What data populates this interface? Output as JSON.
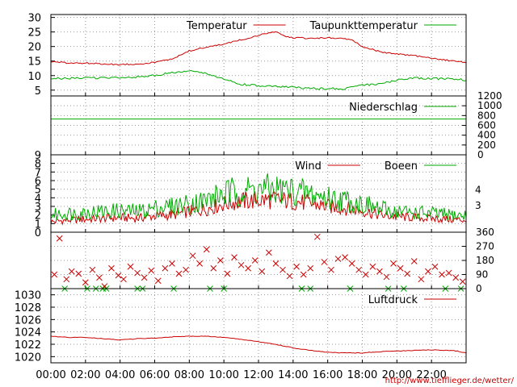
{
  "chart_data": [
    {
      "type": "line",
      "panel": "temperature",
      "ylim": [
        3,
        31
      ],
      "yticks": [
        5,
        10,
        15,
        20,
        25,
        30
      ],
      "grid": true,
      "legend_placement": "top-right",
      "series": [
        {
          "name": "Temperatur",
          "color": "#cc0000",
          "x": [
            0,
            1,
            2,
            3,
            4,
            5,
            6,
            7,
            7.5,
            8,
            9,
            10,
            11,
            12,
            12.5,
            13,
            13.5,
            14,
            15,
            16,
            17,
            17.5,
            18,
            19,
            20,
            21,
            22,
            23,
            24
          ],
          "y": [
            14.8,
            14.3,
            14.3,
            14.0,
            13.8,
            14.0,
            14.5,
            15.8,
            17.0,
            18.5,
            19.8,
            20.8,
            22.3,
            23.8,
            24.5,
            25.2,
            23.5,
            23.0,
            22.8,
            23.0,
            22.6,
            22.0,
            20.0,
            18.2,
            17.4,
            16.8,
            16.0,
            15.2,
            14.5
          ]
        },
        {
          "name": "Taupunkttemperatur",
          "color": "#00aa00",
          "x": [
            0,
            1,
            2,
            3,
            4,
            5,
            6,
            7,
            8,
            9,
            9.5,
            10,
            11,
            12,
            13,
            14,
            15,
            16,
            17,
            18,
            19,
            20,
            21,
            22,
            23,
            24
          ],
          "y": [
            9.0,
            9.0,
            9.2,
            9.2,
            9.4,
            9.5,
            10.0,
            11.0,
            11.5,
            10.8,
            9.5,
            8.8,
            7.0,
            6.5,
            6.2,
            6.0,
            5.5,
            5.5,
            5.5,
            6.8,
            7.0,
            8.5,
            9.2,
            9.0,
            8.8,
            8.5
          ]
        }
      ]
    },
    {
      "type": "line",
      "panel": "precipitation",
      "ylim": [
        0,
        1200
      ],
      "yticks": [
        0,
        200,
        400,
        600,
        800,
        1000,
        1200
      ],
      "legend_placement": "top-right",
      "series": [
        {
          "name": "Niederschlag",
          "color": "#00aa00",
          "x": [
            0,
            24
          ],
          "y": [
            0,
            0
          ]
        }
      ],
      "reference_line": {
        "y": 730,
        "color": "#00aa00"
      }
    },
    {
      "type": "line",
      "panel": "wind",
      "ylim": [
        0,
        9
      ],
      "yticks": [
        0,
        1,
        2,
        3,
        4,
        5,
        6,
        7,
        8,
        9
      ],
      "right_ticks": [
        {
          "label": "3",
          "value": 3.1
        },
        {
          "label": "4",
          "value": 4.9
        }
      ],
      "legend_placement": "top-right",
      "series": [
        {
          "name": "Wind",
          "color": "#cc0000",
          "x": [
            0,
            1,
            2,
            3,
            4,
            5,
            6,
            7,
            8,
            9,
            10,
            11,
            12,
            13,
            14,
            15,
            16,
            17,
            18,
            19,
            20,
            21,
            22,
            23,
            24
          ],
          "y": [
            1.2,
            1.4,
            1.5,
            1.6,
            1.7,
            1.6,
            1.9,
            2.0,
            2.4,
            2.7,
            3.3,
            3.6,
            3.7,
            3.8,
            3.6,
            3.3,
            3.0,
            2.8,
            2.5,
            2.0,
            1.8,
            1.7,
            1.6,
            1.5,
            1.4
          ]
        },
        {
          "name": "Boeen",
          "color": "#00aa00",
          "x": [
            0,
            1,
            2,
            3,
            4,
            5,
            6,
            7,
            8,
            9,
            10,
            11,
            12,
            13,
            14,
            15,
            16,
            17,
            18,
            19,
            20,
            21,
            22,
            23,
            24
          ],
          "y": [
            2.0,
            2.2,
            2.3,
            2.4,
            2.5,
            2.4,
            2.8,
            3.0,
            3.3,
            3.7,
            4.5,
            4.8,
            4.9,
            5.0,
            4.8,
            4.4,
            4.0,
            3.7,
            3.3,
            2.7,
            2.4,
            2.3,
            2.2,
            2.0,
            1.9
          ]
        }
      ]
    },
    {
      "type": "scatter",
      "panel": "wind-direction",
      "ylim": [
        0,
        360
      ],
      "right_ticks": [
        0,
        90,
        180,
        270,
        360
      ],
      "marker": "x",
      "grid": true,
      "series": [
        {
          "color": "#00aa00",
          "x": [
            0.8,
            2.1,
            2.6,
            3.0,
            3.2,
            5.0,
            5.3,
            7.1,
            9.2,
            10.0,
            14.5,
            15.0,
            17.3,
            19.5,
            20.4,
            22.8,
            23.7
          ],
          "y": [
            0,
            0,
            0,
            0,
            0,
            0,
            0,
            0,
            0,
            0,
            0,
            0,
            0,
            0,
            0,
            0,
            0
          ]
        },
        {
          "color": "#cc0000",
          "x": [
            0.2,
            0.5,
            0.9,
            1.2,
            1.6,
            2.0,
            2.4,
            2.8,
            3.1,
            3.5,
            3.9,
            4.2,
            4.6,
            5.0,
            5.4,
            5.8,
            6.2,
            6.6,
            7.0,
            7.4,
            7.8,
            8.2,
            8.6,
            9.0,
            9.4,
            9.8,
            10.2,
            10.6,
            11.0,
            11.4,
            11.8,
            12.2,
            12.6,
            13.0,
            13.4,
            13.8,
            14.2,
            14.6,
            15.0,
            15.4,
            15.8,
            16.2,
            16.6,
            17.0,
            17.4,
            17.8,
            18.2,
            18.6,
            19.0,
            19.4,
            19.8,
            20.2,
            20.6,
            21.0,
            21.4,
            21.8,
            22.2,
            22.6,
            23.0,
            23.4,
            23.8
          ],
          "y": [
            90,
            320,
            60,
            110,
            95,
            40,
            120,
            70,
            15,
            130,
            85,
            60,
            140,
            100,
            70,
            115,
            50,
            130,
            160,
            95,
            120,
            210,
            160,
            250,
            130,
            180,
            95,
            200,
            150,
            130,
            180,
            110,
            230,
            160,
            120,
            80,
            140,
            90,
            130,
            330,
            170,
            120,
            190,
            200,
            160,
            120,
            90,
            140,
            110,
            75,
            160,
            130,
            95,
            175,
            60,
            110,
            140,
            90,
            100,
            70,
            45
          ]
        }
      ]
    },
    {
      "type": "line",
      "panel": "pressure",
      "ylim": [
        1019,
        1031
      ],
      "yticks": [
        1020,
        1022,
        1024,
        1026,
        1028,
        1030
      ],
      "xlabels": [
        "00:00",
        "02:00",
        "04:00",
        "06:00",
        "08:00",
        "10:00",
        "12:00",
        "14:00",
        "16:00",
        "18:00",
        "20:00",
        "22:00"
      ],
      "legend_placement": "top-right",
      "series": [
        {
          "name": "Luftdruck",
          "color": "#cc0000",
          "x": [
            0,
            1,
            2,
            3,
            4,
            5,
            6,
            7,
            8,
            9,
            10,
            11,
            12,
            13,
            14,
            15,
            16,
            17,
            18,
            19,
            20,
            21,
            22,
            23,
            23.5,
            24
          ],
          "y": [
            1023.3,
            1023.1,
            1023.1,
            1022.9,
            1022.7,
            1022.9,
            1023.0,
            1023.2,
            1023.3,
            1023.3,
            1023.1,
            1022.8,
            1022.4,
            1022.0,
            1021.4,
            1021.0,
            1020.7,
            1020.6,
            1020.6,
            1020.8,
            1020.9,
            1021.0,
            1021.1,
            1021.0,
            1020.9,
            1020.6
          ]
        }
      ]
    }
  ],
  "credit": "http://www.tiefflieger.de/wetter/"
}
